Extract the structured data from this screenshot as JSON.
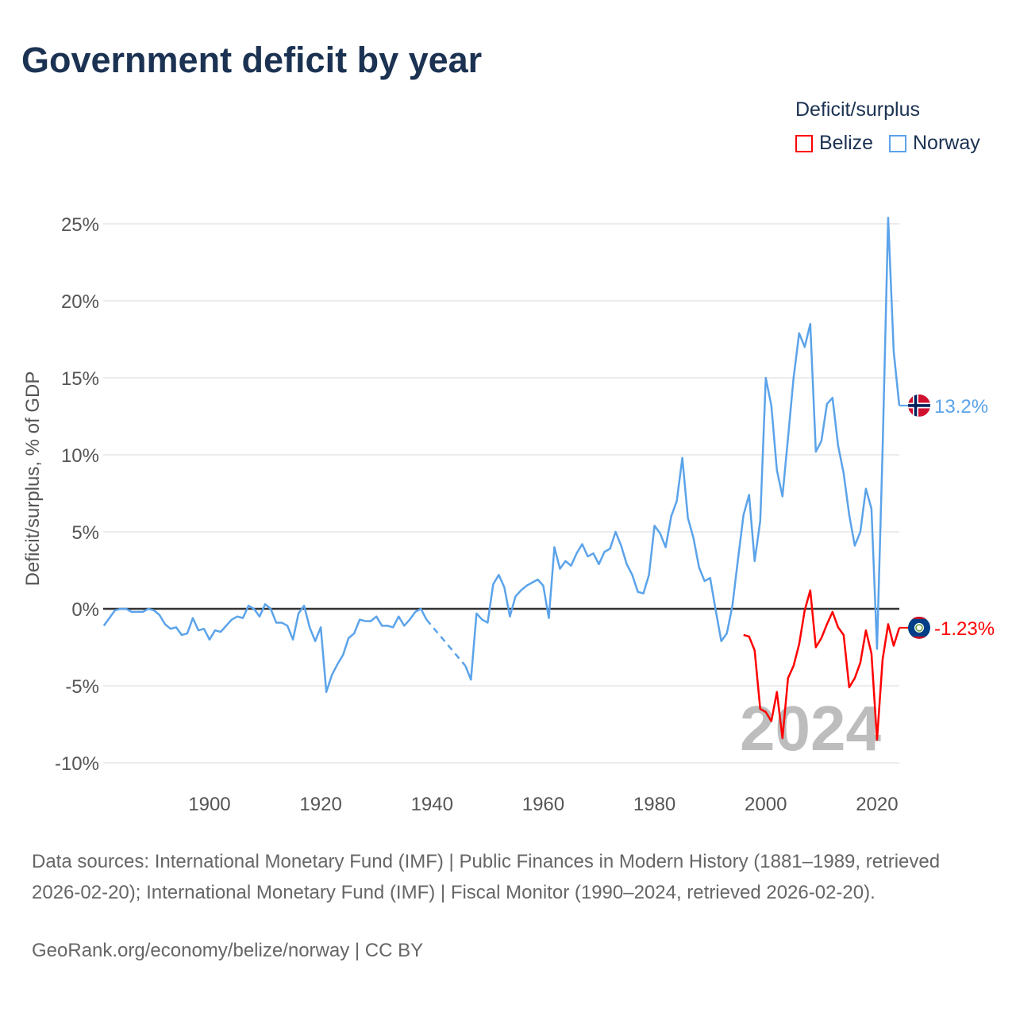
{
  "title": "Government deficit by year",
  "legend": {
    "title": "Deficit/surplus",
    "items": [
      {
        "name": "Belize",
        "color": "#ff0000"
      },
      {
        "name": "Norway",
        "color": "#5ba3ea"
      }
    ]
  },
  "footer": {
    "source": "Data sources: International Monetary Fund (IMF) | Public Finances in Modern History (1881–1989, retrieved 2026-02-20); International Monetary Fund (IMF) | Fiscal Monitor (1990–2024, retrieved 2026-02-20).",
    "credit": "GeoRank.org/economy/belize/norway | CC BY"
  },
  "chart_data": {
    "type": "line",
    "ylabel": "Deficit/surplus, % of GDP",
    "xlim": [
      1881,
      2024
    ],
    "ylim": [
      -11,
      26
    ],
    "yticks": [
      25,
      20,
      15,
      10,
      5,
      0,
      -5,
      -10
    ],
    "ytick_labels": [
      "25%",
      "20%",
      "15%",
      "10%",
      "5%",
      "0%",
      "-5%",
      "-10%"
    ],
    "xticks": [
      1900,
      1920,
      1940,
      1960,
      1980,
      2000,
      2020
    ],
    "xtick_labels": [
      "1900",
      "1920",
      "1940",
      "1960",
      "1980",
      "2000",
      "2020"
    ],
    "year_label": "2024",
    "grid": true,
    "series": [
      {
        "name": "Norway",
        "color": "#5ba3ea",
        "start": 1881,
        "end_label": "13.2%",
        "gap": [
          1939,
          1946
        ],
        "values": [
          -1.1,
          -0.6,
          -0.1,
          0,
          0,
          -0.2,
          -0.2,
          -0.2,
          0,
          -0.1,
          -0.4,
          -1.0,
          -1.3,
          -1.2,
          -1.7,
          -1.6,
          -0.6,
          -1.4,
          -1.3,
          -2.0,
          -1.4,
          -1.5,
          -1.1,
          -0.7,
          -0.5,
          -0.6,
          0.2,
          0,
          -0.5,
          0.3,
          0,
          -0.9,
          -0.9,
          -1.1,
          -2.0,
          -0.3,
          0.2,
          -1.2,
          -2.1,
          -1.2,
          -5.4,
          -4.3,
          -3.6,
          -3.0,
          -1.9,
          -1.6,
          -0.7,
          -0.8,
          -0.8,
          -0.5,
          -1.1,
          -1.1,
          -1.2,
          -0.5,
          -1.1,
          -0.7,
          -0.2,
          0.0,
          -0.7,
          null,
          null,
          null,
          null,
          null,
          null,
          -3.7,
          -4.6,
          -0.3,
          -0.7,
          -0.9,
          1.6,
          2.2,
          1.4,
          -0.5,
          0.8,
          1.2,
          1.5,
          1.7,
          1.9,
          1.5,
          -0.6,
          4.0,
          2.6,
          3.1,
          2.8,
          3.6,
          4.2,
          3.4,
          3.6,
          2.9,
          3.7,
          3.9,
          5.0,
          4.1,
          2.9,
          2.2,
          1.1,
          1.0,
          2.2,
          5.4,
          4.9,
          4.0,
          6.0,
          7.0,
          9.8,
          5.9,
          4.6,
          2.7,
          1.8,
          2.0,
          -0.1,
          -2.1,
          -1.6,
          0.2,
          3.2,
          6.1,
          7.4,
          3.1,
          5.7,
          15.0,
          13.2,
          9.0,
          7.3,
          11.1,
          15.0,
          17.9,
          17.0,
          18.5,
          10.2,
          10.9,
          13.3,
          13.7,
          10.6,
          8.8,
          6.1,
          4.1,
          5.0,
          7.8,
          6.5,
          -2.6,
          10.3,
          25.4,
          16.7,
          13.2
        ]
      },
      {
        "name": "Belize",
        "color": "#ff0000",
        "start": 1996,
        "end_label": "-1.23%",
        "values": [
          -1.7,
          -1.8,
          -2.7,
          -6.5,
          -6.7,
          -7.3,
          -5.4,
          -8.4,
          -4.5,
          -3.7,
          -2.3,
          -0.1,
          1.2,
          -2.5,
          -1.9,
          -1.0,
          -0.2,
          -1.2,
          -1.7,
          -5.1,
          -4.5,
          -3.5,
          -1.4,
          -2.9,
          -8.5,
          -3.3,
          -1.0,
          -2.4,
          -1.23
        ]
      }
    ]
  }
}
